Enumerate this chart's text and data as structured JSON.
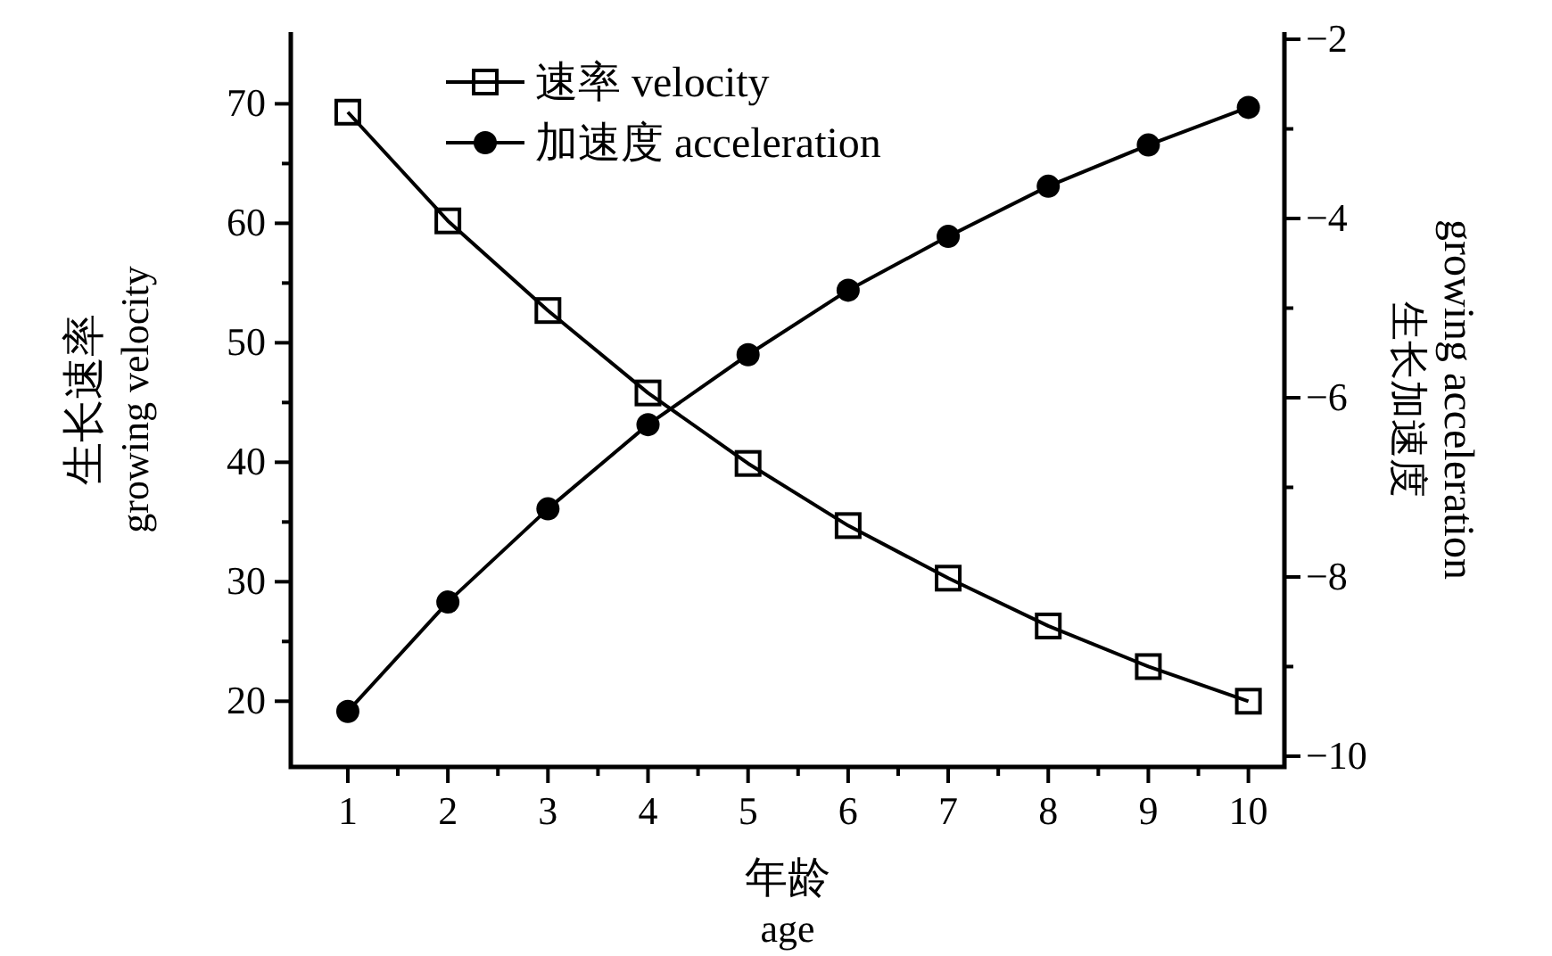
{
  "chart_data": {
    "type": "line",
    "xlabel": "年龄\nage",
    "ylabel": "生长速率\ngrowing velocity",
    "y2label": "growing acceleration\n生长加速度",
    "x": [
      1,
      2,
      3,
      4,
      5,
      6,
      7,
      8,
      9,
      10
    ],
    "series": [
      {
        "name": "速率 velocity",
        "color": "#000000",
        "marker": "square",
        "values": [
          69.3,
          60.2,
          52.7,
          45.8,
          39.9,
          34.7,
          30.3,
          26.3,
          22.9,
          20.0
        ]
      },
      {
        "name": "加速度 acceleration",
        "color": "#000000",
        "marker": "circle",
        "axis": "y2",
        "values": [
          -9.5,
          -8.28,
          -7.24,
          -6.3,
          -5.52,
          -4.8,
          -4.2,
          -3.64,
          -3.18,
          -2.76
        ]
      }
    ],
    "xlim": [
      0.43,
      10.36
    ],
    "ylim": [
      14.5,
      76
    ],
    "y2lim": [
      -10.12,
      -1.92
    ],
    "xticks": [
      1,
      {
        "value": 1.5,
        "label": null
      },
      2,
      {
        "value": 2.5,
        "label": null
      },
      3,
      {
        "value": 3.5,
        "label": null
      },
      4,
      {
        "value": 4.5,
        "label": null
      },
      5,
      {
        "value": 5.5,
        "label": null
      },
      6,
      {
        "value": 6.5,
        "label": null
      },
      7,
      {
        "value": 7.5,
        "label": null
      },
      8,
      {
        "value": 8.5,
        "label": null
      },
      9,
      {
        "value": 9.5,
        "label": null
      },
      10
    ],
    "yticks": [
      20,
      {
        "value": 25,
        "label": null
      },
      30,
      {
        "value": 35,
        "label": null
      },
      40,
      {
        "value": 45,
        "label": null
      },
      50,
      {
        "value": 55,
        "label": null
      },
      60,
      {
        "value": 65,
        "label": null
      },
      70
    ],
    "y2ticks": [
      -10,
      {
        "value": -9,
        "label": null
      },
      -8,
      {
        "value": -7,
        "label": null
      },
      -6,
      {
        "value": -5,
        "label": null
      },
      -4,
      {
        "value": -3,
        "label": null
      },
      -2
    ],
    "legend": "top",
    "grid": false,
    "line_style": "solid"
  }
}
